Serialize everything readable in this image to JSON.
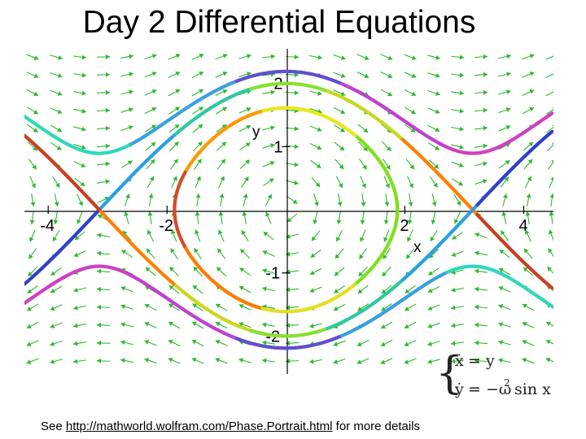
{
  "title": "Day 2 Differential Equations",
  "plot": {
    "x_label": "x",
    "y_label": "y",
    "x_ticks": [
      {
        "value": -4,
        "label": "-4"
      },
      {
        "value": -2,
        "label": "-2"
      },
      {
        "value": 2,
        "label": "2"
      },
      {
        "value": 4,
        "label": "4"
      }
    ],
    "y_ticks": [
      {
        "value": 2,
        "label": "2"
      },
      {
        "value": 1,
        "label": "1"
      },
      {
        "value": -1,
        "label": "-1"
      },
      {
        "value": -2,
        "label": "-2"
      }
    ],
    "x_range": [
      -4.4,
      4.5
    ],
    "y_range": [
      -2.6,
      2.55
    ],
    "field_color": "#2db82d",
    "trajectories": [
      {
        "energy": 1.3,
        "kind": "closed",
        "colors": [
          "#7fe01a",
          "#e8e81a",
          "#ff9900",
          "#d24c2a",
          "#ff7a00",
          "#e0e020",
          "#7fe01a"
        ]
      },
      {
        "energy": 2.0,
        "kind": "separatrix",
        "colors": [
          "#3040c8",
          "#2aa0e0",
          "#30c8a0",
          "#88e030",
          "#c8d820",
          "#ff8000",
          "#c84020"
        ]
      },
      {
        "energy": 2.4,
        "kind": "running",
        "colors": [
          "#30d8b8",
          "#3aa0e0",
          "#6050d0",
          "#c040d0",
          "#d040c0"
        ]
      }
    ]
  },
  "equations": {
    "line1_lhs": "ẋ",
    "line1_rhs": "= y",
    "line2_lhs": "ẏ",
    "line2_rhs": "= −ω",
    "line2_sup": "2",
    "line2_tail": "sin x"
  },
  "footer": {
    "prefix": "See ",
    "link": "http://mathworld.wolfram.com/Phase.Portrait.html",
    "suffix": " for more details"
  }
}
